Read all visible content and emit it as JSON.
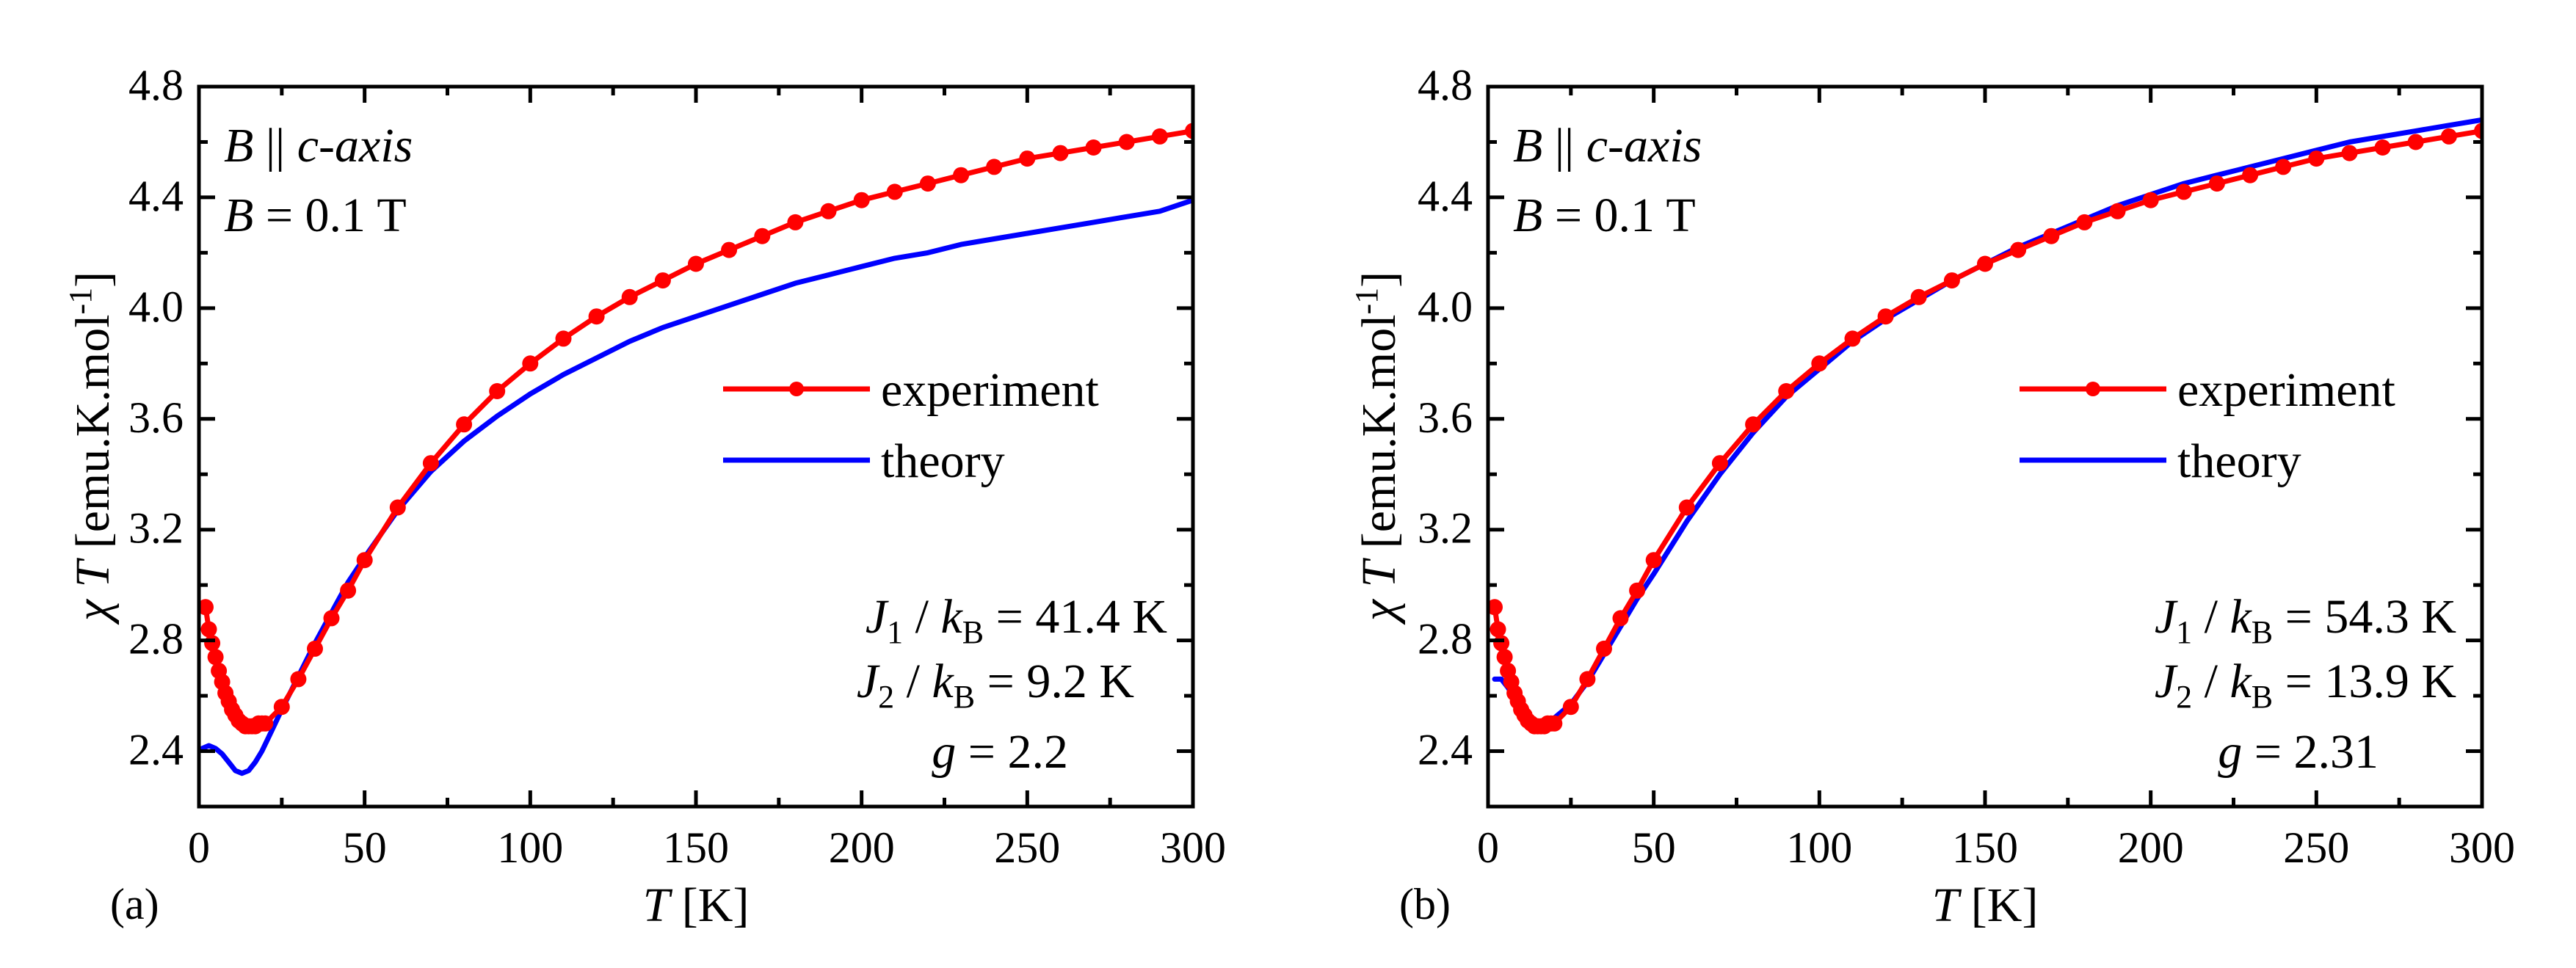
{
  "chart_data": [
    {
      "panel": "(a)",
      "type": "line",
      "xlabel": "T [K]",
      "xlabel_parts": {
        "symbol": "T",
        "unit": "[K]"
      },
      "ylabel": "χ T [emu.K.mol-1]",
      "ylabel_parts": {
        "chi": "χ",
        "symbol": "T",
        "unit": "[emu.K.mol",
        "sup": "-1",
        "close": "]"
      },
      "xlim": [
        0,
        300
      ],
      "ylim": [
        2.2,
        4.8
      ],
      "xticks": [
        "0",
        "50",
        "100",
        "150",
        "200",
        "250",
        "300"
      ],
      "yticks": [
        "2.4",
        "2.8",
        "3.2",
        "3.6",
        "4.0",
        "4.4",
        "4.8"
      ],
      "field_direction": {
        "symbol": "B",
        "sep": " || ",
        "axis": "c-axis"
      },
      "field_value": {
        "symbol": "B",
        "text": " = 0.1 T"
      },
      "parameters": [
        {
          "sym": "J",
          "sub": "1",
          "slash": " / ",
          "k": "k",
          "ksub": "B",
          "value": " = 41.4 K"
        },
        {
          "sym": "J",
          "sub": "2",
          "slash": " / ",
          "k": "k",
          "ksub": "B",
          "value": " = 9.2 K"
        },
        {
          "sym": "g",
          "sub": "",
          "slash": "",
          "k": "",
          "ksub": "",
          "value": " = 2.2"
        }
      ],
      "legend": [
        "experiment",
        "theory"
      ],
      "legend_position": "center-right",
      "series": [
        {
          "name": "experiment",
          "color": "#ff0000",
          "marker": "circle",
          "x": [
            2,
            3,
            4,
            5,
            6,
            7,
            8,
            9,
            10,
            11,
            12,
            13,
            14,
            15,
            16,
            17,
            18,
            19,
            20,
            25,
            30,
            35,
            40,
            45,
            50,
            60,
            70,
            80,
            90,
            100,
            110,
            120,
            130,
            140,
            150,
            160,
            170,
            180,
            190,
            200,
            210,
            220,
            230,
            240,
            250,
            260,
            270,
            280,
            290,
            300
          ],
          "y": [
            2.92,
            2.84,
            2.79,
            2.74,
            2.69,
            2.65,
            2.61,
            2.58,
            2.55,
            2.53,
            2.51,
            2.5,
            2.49,
            2.49,
            2.49,
            2.49,
            2.5,
            2.5,
            2.5,
            2.56,
            2.66,
            2.77,
            2.88,
            2.98,
            3.09,
            3.28,
            3.44,
            3.58,
            3.7,
            3.8,
            3.89,
            3.97,
            4.04,
            4.1,
            4.16,
            4.21,
            4.26,
            4.31,
            4.35,
            4.39,
            4.42,
            4.45,
            4.48,
            4.51,
            4.54,
            4.56,
            4.58,
            4.6,
            4.62,
            4.64
          ]
        },
        {
          "name": "theory",
          "color": "#0000ff",
          "x": [
            1,
            3,
            5,
            7,
            9,
            11,
            13,
            15,
            17,
            19,
            21,
            25,
            30,
            35,
            40,
            45,
            50,
            60,
            70,
            80,
            90,
            100,
            110,
            120,
            130,
            140,
            150,
            160,
            170,
            180,
            190,
            200,
            210,
            220,
            230,
            240,
            250,
            260,
            270,
            280,
            290,
            300
          ],
          "y": [
            2.41,
            2.42,
            2.41,
            2.39,
            2.36,
            2.33,
            2.32,
            2.33,
            2.36,
            2.4,
            2.45,
            2.55,
            2.67,
            2.79,
            2.9,
            3.01,
            3.1,
            3.27,
            3.41,
            3.52,
            3.61,
            3.69,
            3.76,
            3.82,
            3.88,
            3.93,
            3.97,
            4.01,
            4.05,
            4.09,
            4.12,
            4.15,
            4.18,
            4.2,
            4.23,
            4.25,
            4.27,
            4.29,
            4.31,
            4.33,
            4.35,
            4.39
          ]
        }
      ]
    },
    {
      "panel": "(b)",
      "type": "line",
      "xlabel": "T [K]",
      "xlabel_parts": {
        "symbol": "T",
        "unit": "[K]"
      },
      "ylabel": "χ T [emu.K.mol-1]",
      "ylabel_parts": {
        "chi": "χ",
        "symbol": "T",
        "unit": "[emu.K.mol",
        "sup": "-1",
        "close": "]"
      },
      "xlim": [
        0,
        300
      ],
      "ylim": [
        2.2,
        4.8
      ],
      "xticks": [
        "0",
        "50",
        "100",
        "150",
        "200",
        "250",
        "300"
      ],
      "yticks": [
        "2.4",
        "2.8",
        "3.2",
        "3.6",
        "4.0",
        "4.4",
        "4.8"
      ],
      "field_direction": {
        "symbol": "B",
        "sep": " || ",
        "axis": "c-axis"
      },
      "field_value": {
        "symbol": "B",
        "text": " = 0.1 T"
      },
      "parameters": [
        {
          "sym": "J",
          "sub": "1",
          "slash": " / ",
          "k": "k",
          "ksub": "B",
          "value": " = 54.3 K"
        },
        {
          "sym": "J",
          "sub": "2",
          "slash": " / ",
          "k": "k",
          "ksub": "B",
          "value": " = 13.9 K"
        },
        {
          "sym": "g",
          "sub": "",
          "slash": "",
          "k": "",
          "ksub": "",
          "value": " = 2.31"
        }
      ],
      "legend": [
        "experiment",
        "theory"
      ],
      "legend_position": "center-right",
      "series": [
        {
          "name": "experiment",
          "color": "#ff0000",
          "marker": "circle",
          "x": [
            2,
            3,
            4,
            5,
            6,
            7,
            8,
            9,
            10,
            11,
            12,
            13,
            14,
            15,
            16,
            17,
            18,
            19,
            20,
            25,
            30,
            35,
            40,
            45,
            50,
            60,
            70,
            80,
            90,
            100,
            110,
            120,
            130,
            140,
            150,
            160,
            170,
            180,
            190,
            200,
            210,
            220,
            230,
            240,
            250,
            260,
            270,
            280,
            290,
            300
          ],
          "y": [
            2.92,
            2.84,
            2.79,
            2.74,
            2.69,
            2.65,
            2.61,
            2.58,
            2.55,
            2.53,
            2.51,
            2.5,
            2.49,
            2.49,
            2.49,
            2.49,
            2.5,
            2.5,
            2.5,
            2.56,
            2.66,
            2.77,
            2.88,
            2.98,
            3.09,
            3.28,
            3.44,
            3.58,
            3.7,
            3.8,
            3.89,
            3.97,
            4.04,
            4.1,
            4.16,
            4.21,
            4.26,
            4.31,
            4.35,
            4.39,
            4.42,
            4.45,
            4.48,
            4.51,
            4.54,
            4.56,
            4.58,
            4.6,
            4.62,
            4.64
          ]
        },
        {
          "name": "theory",
          "color": "#0000ff",
          "x": [
            2,
            4,
            6,
            8,
            10,
            12,
            14,
            16,
            18,
            20,
            25,
            30,
            35,
            40,
            45,
            50,
            60,
            70,
            80,
            90,
            100,
            110,
            120,
            130,
            140,
            150,
            160,
            170,
            180,
            190,
            200,
            210,
            220,
            230,
            240,
            250,
            260,
            270,
            280,
            290,
            300
          ],
          "y": [
            2.66,
            2.66,
            2.63,
            2.59,
            2.55,
            2.52,
            2.5,
            2.5,
            2.51,
            2.52,
            2.57,
            2.65,
            2.75,
            2.85,
            2.95,
            3.04,
            3.23,
            3.4,
            3.55,
            3.68,
            3.78,
            3.88,
            3.96,
            4.03,
            4.1,
            4.16,
            4.22,
            4.27,
            4.32,
            4.37,
            4.41,
            4.45,
            4.48,
            4.51,
            4.54,
            4.57,
            4.6,
            4.62,
            4.64,
            4.66,
            4.68
          ]
        }
      ]
    }
  ]
}
